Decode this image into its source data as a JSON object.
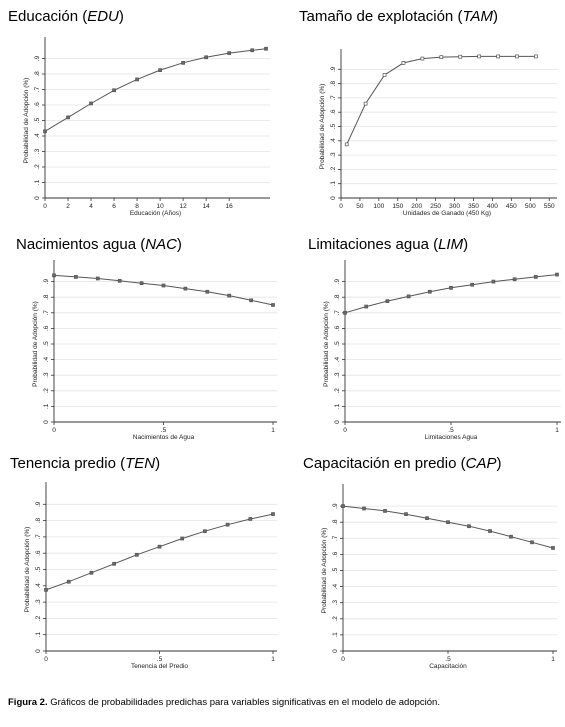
{
  "caption": {
    "label": "Figura 2.",
    "text": "Gráficos de probabilidades predichas para variables significativas en el modelo de adopción."
  },
  "chart_data": [
    {
      "type": "line",
      "title_main": "Educación (",
      "title_abbr": "EDU",
      "title_end": ")",
      "xlabel": "Educación (Años)",
      "ylabel": "Probabilidad de Adopción (%)",
      "x": [
        0,
        2,
        4,
        6,
        8,
        10,
        12,
        14,
        16,
        18,
        19.2
      ],
      "y": [
        0.43,
        0.52,
        0.61,
        0.695,
        0.765,
        0.825,
        0.872,
        0.908,
        0.935,
        0.953,
        0.963
      ],
      "xticks": [
        0,
        2,
        4,
        6,
        8,
        10,
        12,
        14,
        16
      ],
      "xtick_labels": [
        "0",
        "2",
        "4",
        "6",
        "8",
        "10",
        "12",
        "14",
        "16"
      ],
      "yticks": [
        0,
        0.1,
        0.2,
        0.3,
        0.4,
        0.5,
        0.6,
        0.7,
        0.8,
        0.9
      ],
      "ytick_labels": [
        "0",
        ".1",
        ".2",
        ".3",
        ".4",
        ".5",
        ".6",
        ".7",
        ".8",
        ".9"
      ],
      "xlim": [
        0,
        19.2
      ],
      "ylim": [
        0,
        1
      ],
      "marker": "filled",
      "grid": true
    },
    {
      "type": "line",
      "title_main": "Tamaño de explotación (",
      "title_abbr": "TAM",
      "title_end": ")",
      "xlabel": "Unidades de Ganado (450 Kg)",
      "ylabel": "Probabilidad de Adopción (%)",
      "x": [
        15,
        65,
        115,
        165,
        215,
        265,
        315,
        365,
        415,
        465,
        515
      ],
      "y": [
        0.375,
        0.66,
        0.86,
        0.945,
        0.975,
        0.985,
        0.988,
        0.99,
        0.99,
        0.99,
        0.99
      ],
      "xticks": [
        0,
        50,
        100,
        150,
        200,
        250,
        300,
        350,
        400,
        450,
        500,
        550
      ],
      "xtick_labels": [
        "0",
        "50",
        "100",
        "150",
        "200",
        "250",
        "300",
        "350",
        "400",
        "450",
        "500",
        "550"
      ],
      "yticks": [
        0,
        0.1,
        0.2,
        0.3,
        0.4,
        0.5,
        0.6,
        0.7,
        0.8,
        0.9
      ],
      "ytick_labels": [
        "0",
        ".1",
        ".2",
        ".3",
        ".4",
        ".5",
        ".6",
        ".7",
        ".8",
        ".9"
      ],
      "xlim": [
        0,
        560
      ],
      "ylim": [
        0,
        1
      ],
      "marker": "hollow",
      "grid": true
    },
    {
      "type": "line",
      "title_main": "Nacimientos agua (",
      "title_abbr": "NAC",
      "title_end": ")",
      "xlabel": "Nacimientos de Agua",
      "ylabel": "Probabilidad de Adopción (%)",
      "x": [
        0,
        0.1,
        0.2,
        0.3,
        0.4,
        0.5,
        0.6,
        0.7,
        0.8,
        0.9,
        1
      ],
      "y": [
        0.94,
        0.93,
        0.92,
        0.905,
        0.89,
        0.875,
        0.855,
        0.835,
        0.81,
        0.78,
        0.75
      ],
      "xticks": [
        0,
        0.5,
        1
      ],
      "xtick_labels": [
        "0",
        ".5",
        "1"
      ],
      "yticks": [
        0,
        0.1,
        0.2,
        0.3,
        0.4,
        0.5,
        0.6,
        0.7,
        0.8,
        0.9
      ],
      "ytick_labels": [
        "0",
        ".1",
        ".2",
        ".3",
        ".4",
        ".5",
        ".6",
        ".7",
        ".8",
        ".9"
      ],
      "xlim": [
        0,
        1
      ],
      "ylim": [
        0,
        1
      ],
      "marker": "filled",
      "grid": true
    },
    {
      "type": "line",
      "title_main": "Limitaciones agua (",
      "title_abbr": "LIM",
      "title_end": ")",
      "xlabel": "Limitaciones Agua",
      "ylabel": "Probabilidad de Adopción (%)",
      "x": [
        0,
        0.1,
        0.2,
        0.3,
        0.4,
        0.5,
        0.6,
        0.7,
        0.8,
        0.9,
        1
      ],
      "y": [
        0.7,
        0.74,
        0.775,
        0.805,
        0.835,
        0.86,
        0.88,
        0.9,
        0.915,
        0.93,
        0.945
      ],
      "xticks": [
        0,
        0.5,
        1
      ],
      "xtick_labels": [
        "0",
        ".5",
        "1"
      ],
      "yticks": [
        0,
        0.1,
        0.2,
        0.3,
        0.4,
        0.5,
        0.6,
        0.7,
        0.8,
        0.9
      ],
      "ytick_labels": [
        "0",
        ".1",
        ".2",
        ".3",
        ".4",
        ".5",
        ".6",
        ".7",
        ".8",
        ".9"
      ],
      "xlim": [
        0,
        1
      ],
      "ylim": [
        0,
        1
      ],
      "marker": "filled",
      "grid": true
    },
    {
      "type": "line",
      "title_main": "Tenencia predio (",
      "title_abbr": "TEN",
      "title_end": ")",
      "xlabel": "Tenencia del Predio",
      "ylabel": "Probabilidad de Adopción (%)",
      "x": [
        0,
        0.1,
        0.2,
        0.3,
        0.4,
        0.5,
        0.6,
        0.7,
        0.8,
        0.9,
        1
      ],
      "y": [
        0.375,
        0.425,
        0.48,
        0.535,
        0.59,
        0.64,
        0.69,
        0.735,
        0.775,
        0.81,
        0.84
      ],
      "xticks": [
        0,
        0.5,
        1
      ],
      "xtick_labels": [
        "0",
        ".5",
        "1"
      ],
      "yticks": [
        0,
        0.1,
        0.2,
        0.3,
        0.4,
        0.5,
        0.6,
        0.7,
        0.8,
        0.9
      ],
      "ytick_labels": [
        "0",
        ".1",
        ".2",
        ".3",
        ".4",
        ".5",
        ".6",
        ".7",
        ".8",
        ".9"
      ],
      "xlim": [
        0,
        1
      ],
      "ylim": [
        0,
        1
      ],
      "marker": "filled",
      "grid": true
    },
    {
      "type": "line",
      "title_main": "Capacitación en predio (",
      "title_abbr": "CAP",
      "title_end": ")",
      "xlabel": "Capacitación",
      "ylabel": "Probabilidad de Adopción (%)",
      "x": [
        0,
        0.1,
        0.2,
        0.3,
        0.4,
        0.5,
        0.6,
        0.7,
        0.8,
        0.9,
        1
      ],
      "y": [
        0.9,
        0.885,
        0.87,
        0.85,
        0.825,
        0.8,
        0.775,
        0.745,
        0.71,
        0.675,
        0.64
      ],
      "xticks": [
        0,
        0.5,
        1
      ],
      "xtick_labels": [
        "0",
        ".5",
        "1"
      ],
      "yticks": [
        0,
        0.1,
        0.2,
        0.3,
        0.4,
        0.5,
        0.6,
        0.7,
        0.8,
        0.9
      ],
      "ytick_labels": [
        "0",
        ".1",
        ".2",
        ".3",
        ".4",
        ".5",
        ".6",
        ".7",
        ".8",
        ".9"
      ],
      "xlim": [
        0,
        1
      ],
      "ylim": [
        0,
        1
      ],
      "marker": "filled",
      "grid": true
    }
  ]
}
